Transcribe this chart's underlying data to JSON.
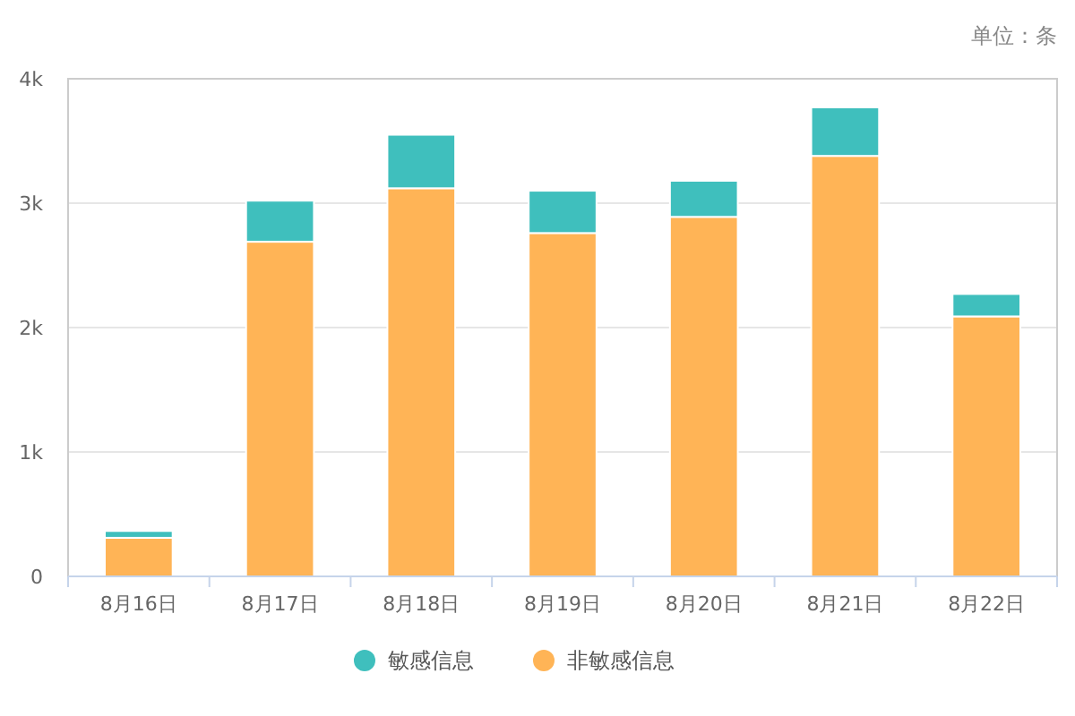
{
  "chart_data": {
    "type": "bar",
    "stacked": true,
    "annotations": [
      "单位：条"
    ],
    "categories": [
      "8月16日",
      "8月17日",
      "8月18日",
      "8月19日",
      "8月20日",
      "8月21日",
      "8月22日"
    ],
    "series": [
      {
        "name": "非敏感信息",
        "color": "#ffb456",
        "values": [
          310,
          2690,
          3120,
          2760,
          2890,
          3380,
          2090
        ]
      },
      {
        "name": "敏感信息",
        "color": "#3fbfbd",
        "values": [
          55,
          330,
          430,
          340,
          290,
          390,
          180
        ]
      }
    ],
    "ylim": [
      0,
      4000
    ],
    "yticks": [
      0,
      {
        "value": 1000,
        "label": "1k"
      },
      {
        "value": 2000,
        "label": "2k"
      },
      {
        "value": 3000,
        "label": "3k"
      },
      {
        "value": 4000,
        "label": "4k"
      }
    ],
    "grid": "y",
    "legend": "bottom"
  }
}
